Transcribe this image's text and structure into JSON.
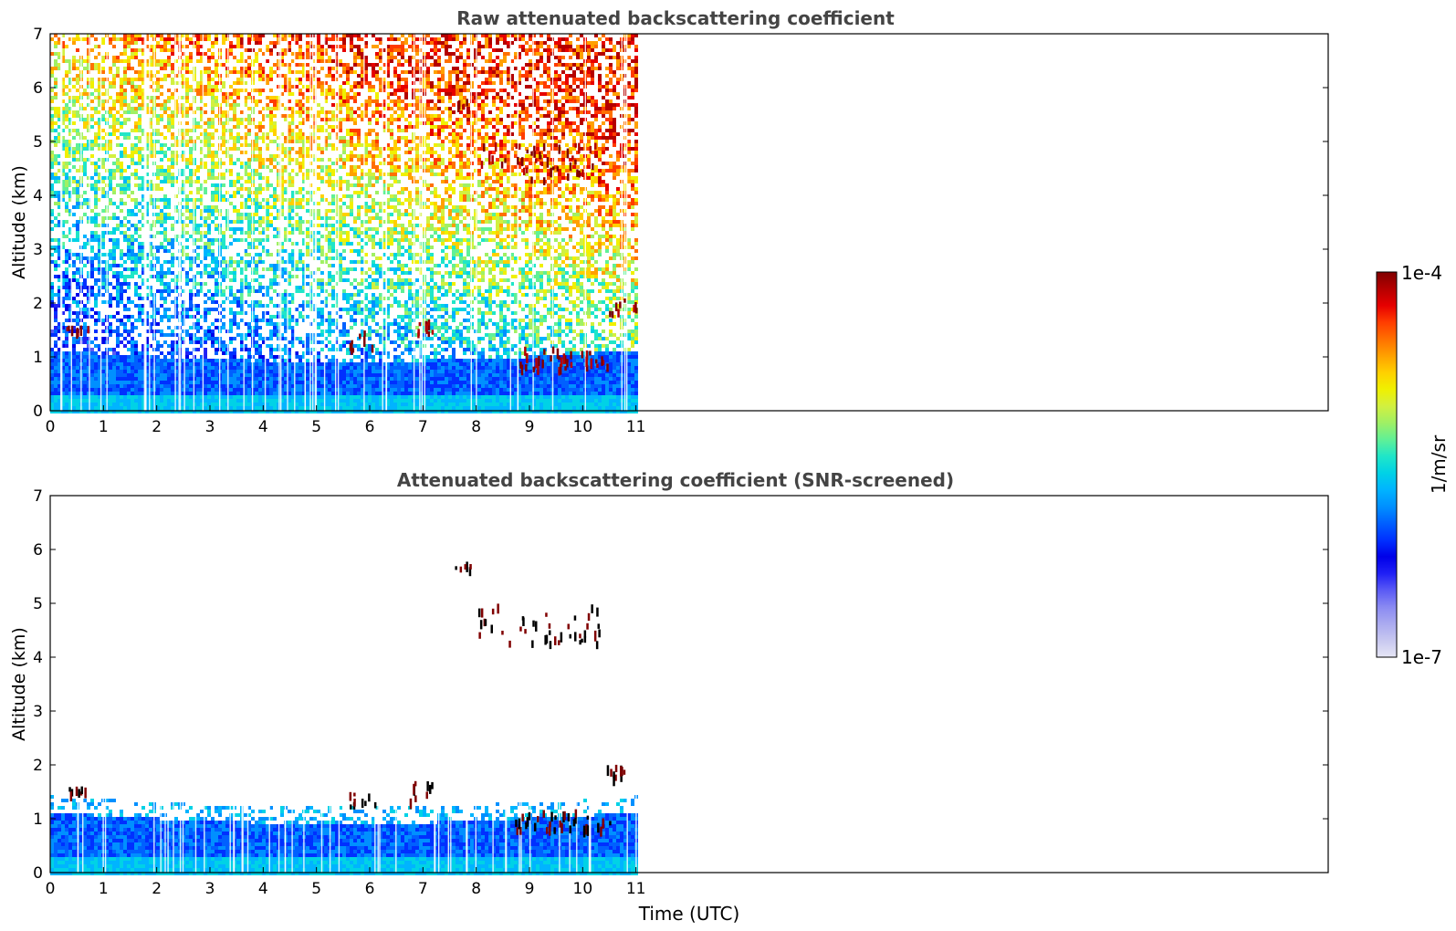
{
  "figure": {
    "colorbar": {
      "label": "1/m/sr",
      "max_label": "1e-4",
      "min_label": "1e-7",
      "colors": [
        "#e6e6f5",
        "#c8c8f0",
        "#aaaaf0",
        "#8a8af2",
        "#5a5af5",
        "#2020f5",
        "#0000e8",
        "#0030ff",
        "#0060ff",
        "#0090ff",
        "#00b4ff",
        "#00d2e6",
        "#20e6c8",
        "#60f096",
        "#a0f064",
        "#d2f040",
        "#f0f000",
        "#ffd000",
        "#ffa000",
        "#ff7000",
        "#ff3c00",
        "#e60000",
        "#b40000",
        "#800000"
      ]
    },
    "xlabel": "Time (UTC)"
  },
  "chart_data": [
    {
      "type": "heatmap",
      "title": "Raw attenuated backscattering coefficient",
      "xlabel": "",
      "ylabel": "Altitude (km)",
      "xlim": [
        0,
        24
      ],
      "ylim": [
        0,
        7
      ],
      "xticks": [
        0,
        1,
        2,
        3,
        4,
        5,
        6,
        7,
        8,
        9,
        10,
        11
      ],
      "yticks": [
        0,
        1,
        2,
        3,
        4,
        5,
        6,
        7
      ],
      "data_extent_x": [
        0,
        11
      ],
      "colorscale": "log",
      "zlim": [
        "1e-7",
        "1e-4"
      ],
      "features": [
        {
          "kind": "boundary layer aerosol",
          "x": [
            0,
            11
          ],
          "y": [
            0,
            1.2
          ]
        },
        {
          "kind": "cloud",
          "x": [
            0.25,
            0.7
          ],
          "y": [
            1.5,
            1.6
          ]
        },
        {
          "kind": "cloud",
          "x": [
            5.6,
            6.1
          ],
          "y": [
            1.1,
            1.5
          ]
        },
        {
          "kind": "cloud",
          "x": [
            6.7,
            7.2
          ],
          "y": [
            1.35,
            1.7
          ]
        },
        {
          "kind": "cloud",
          "x": [
            8.7,
            10.5
          ],
          "y": [
            0.8,
            1.2
          ]
        },
        {
          "kind": "cloud",
          "x": [
            10.4,
            11
          ],
          "y": [
            1.8,
            2.1
          ]
        },
        {
          "kind": "cloud",
          "x": [
            7.6,
            7.9
          ],
          "y": [
            5.65,
            5.8
          ]
        },
        {
          "kind": "cloud",
          "x": [
            8,
            10.3
          ],
          "y": [
            4.3,
            5.0
          ]
        }
      ]
    },
    {
      "type": "heatmap",
      "title": "Attenuated backscattering coefficient (SNR-screened)",
      "xlabel": "Time (UTC)",
      "ylabel": "Altitude (km)",
      "xlim": [
        0,
        24
      ],
      "ylim": [
        0,
        7
      ],
      "xticks": [
        0,
        1,
        2,
        3,
        4,
        5,
        6,
        7,
        8,
        9,
        10,
        11
      ],
      "yticks": [
        0,
        1,
        2,
        3,
        4,
        5,
        6,
        7
      ],
      "data_extent_x": [
        0,
        11
      ],
      "colorscale": "log",
      "zlim": [
        "1e-7",
        "1e-4"
      ],
      "features": [
        {
          "kind": "boundary layer aerosol",
          "x": [
            0,
            11
          ],
          "y": [
            0,
            1.3
          ]
        },
        {
          "kind": "cloud",
          "x": [
            0.25,
            0.7
          ],
          "y": [
            1.5,
            1.6
          ]
        },
        {
          "kind": "cloud",
          "x": [
            5.6,
            6.1
          ],
          "y": [
            1.1,
            1.5
          ]
        },
        {
          "kind": "cloud",
          "x": [
            6.7,
            7.2
          ],
          "y": [
            1.35,
            1.7
          ]
        },
        {
          "kind": "cloud",
          "x": [
            8.7,
            10.5
          ],
          "y": [
            0.8,
            1.2
          ]
        },
        {
          "kind": "cloud",
          "x": [
            10.4,
            11
          ],
          "y": [
            1.8,
            2.1
          ]
        },
        {
          "kind": "cloud",
          "x": [
            7.6,
            7.9
          ],
          "y": [
            5.65,
            5.8
          ]
        },
        {
          "kind": "cloud",
          "x": [
            8,
            10.3
          ],
          "y": [
            4.3,
            5.0
          ]
        }
      ]
    }
  ]
}
